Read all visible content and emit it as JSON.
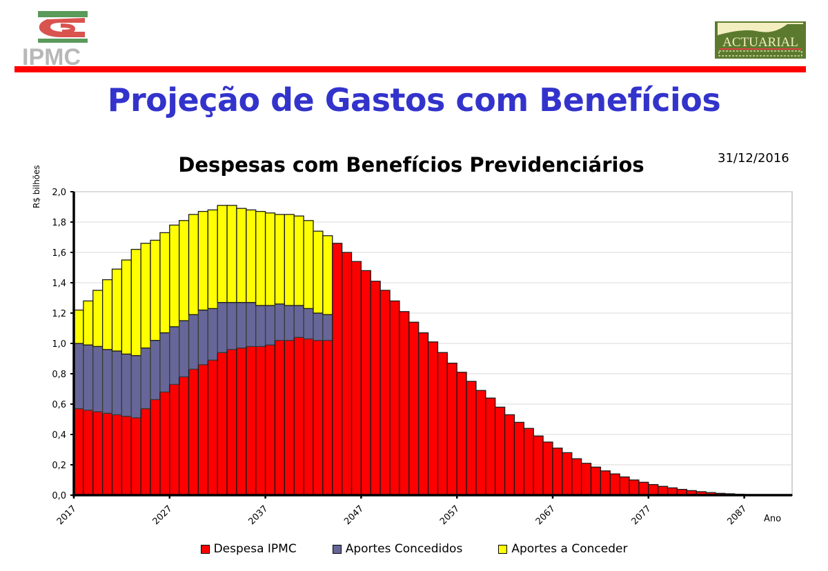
{
  "header": {
    "left_logo": {
      "text": "IPMC",
      "icon": "ipmc-logo"
    },
    "right_logo": {
      "text": "ACTUARIAL",
      "icon": "actuarial-logo"
    },
    "accent_color": "#ff0000"
  },
  "title": "Projeção de Gastos com Benefícios",
  "title_color": "#3333cc",
  "date": "31/12/2016",
  "chart_data": {
    "type": "bar",
    "stacked": true,
    "title": "Despesas com Benefícios Previdenciários",
    "xlabel": "Ano",
    "ylabel": "R$ bilhões",
    "ylim": [
      0,
      2.0
    ],
    "yticks": [
      "0,0",
      "0,2",
      "0,4",
      "0,6",
      "0,8",
      "1,0",
      "1,2",
      "1,4",
      "1,6",
      "1,8",
      "2,0"
    ],
    "xticks": [
      "2017",
      "2027",
      "2037",
      "2047",
      "2057",
      "2067",
      "2077",
      "2087"
    ],
    "grid": true,
    "legend_position": "bottom",
    "categories": [
      2017,
      2018,
      2019,
      2020,
      2021,
      2022,
      2023,
      2024,
      2025,
      2026,
      2027,
      2028,
      2029,
      2030,
      2031,
      2032,
      2033,
      2034,
      2035,
      2036,
      2037,
      2038,
      2039,
      2040,
      2041,
      2042,
      2043,
      2044,
      2045,
      2046,
      2047,
      2048,
      2049,
      2050,
      2051,
      2052,
      2053,
      2054,
      2055,
      2056,
      2057,
      2058,
      2059,
      2060,
      2061,
      2062,
      2063,
      2064,
      2065,
      2066,
      2067,
      2068,
      2069,
      2070,
      2071,
      2072,
      2073,
      2074,
      2075,
      2076,
      2077,
      2078,
      2079,
      2080,
      2081,
      2082,
      2083,
      2084,
      2085,
      2086,
      2087,
      2088,
      2089,
      2090,
      2091
    ],
    "series": [
      {
        "name": "Despesa IPMC",
        "color": "#ff0000",
        "values": [
          0.57,
          0.56,
          0.55,
          0.54,
          0.53,
          0.52,
          0.51,
          0.57,
          0.63,
          0.68,
          0.73,
          0.78,
          0.83,
          0.86,
          0.89,
          0.94,
          0.96,
          0.97,
          0.98,
          0.98,
          0.99,
          1.02,
          1.02,
          1.04,
          1.03,
          1.02,
          1.02,
          1.66,
          1.6,
          1.54,
          1.48,
          1.41,
          1.35,
          1.28,
          1.21,
          1.14,
          1.07,
          1.01,
          0.94,
          0.87,
          0.81,
          0.75,
          0.69,
          0.64,
          0.58,
          0.53,
          0.48,
          0.44,
          0.39,
          0.35,
          0.31,
          0.28,
          0.24,
          0.21,
          0.185,
          0.16,
          0.14,
          0.12,
          0.1,
          0.085,
          0.07,
          0.058,
          0.048,
          0.038,
          0.03,
          0.023,
          0.017,
          0.012,
          0.009,
          0.006,
          0.004,
          0.003,
          0.002,
          0.001,
          0.001
        ]
      },
      {
        "name": "Aportes Concedidos",
        "color": "#666699",
        "values": [
          0.43,
          0.43,
          0.43,
          0.42,
          0.42,
          0.41,
          0.41,
          0.4,
          0.39,
          0.39,
          0.38,
          0.37,
          0.36,
          0.36,
          0.34,
          0.33,
          0.31,
          0.3,
          0.29,
          0.27,
          0.26,
          0.24,
          0.23,
          0.21,
          0.2,
          0.18,
          0.17,
          0,
          0,
          0,
          0,
          0,
          0,
          0,
          0,
          0,
          0,
          0,
          0,
          0,
          0,
          0,
          0,
          0,
          0,
          0,
          0,
          0,
          0,
          0,
          0,
          0,
          0,
          0,
          0,
          0,
          0,
          0,
          0,
          0,
          0,
          0,
          0,
          0,
          0,
          0,
          0,
          0,
          0,
          0,
          0,
          0,
          0,
          0,
          0
        ]
      },
      {
        "name": "Aportes a Conceder",
        "color": "#ffff00",
        "values": [
          0.22,
          0.29,
          0.37,
          0.46,
          0.54,
          0.62,
          0.7,
          0.69,
          0.66,
          0.66,
          0.67,
          0.66,
          0.66,
          0.65,
          0.65,
          0.64,
          0.64,
          0.62,
          0.61,
          0.62,
          0.61,
          0.59,
          0.6,
          0.59,
          0.58,
          0.54,
          0.52,
          0,
          0,
          0,
          0,
          0,
          0,
          0,
          0,
          0,
          0,
          0,
          0,
          0,
          0,
          0,
          0,
          0,
          0,
          0,
          0,
          0,
          0,
          0,
          0,
          0,
          0,
          0,
          0,
          0,
          0,
          0,
          0,
          0,
          0,
          0,
          0,
          0,
          0,
          0,
          0,
          0,
          0,
          0,
          0,
          0,
          0,
          0,
          0
        ]
      }
    ]
  }
}
